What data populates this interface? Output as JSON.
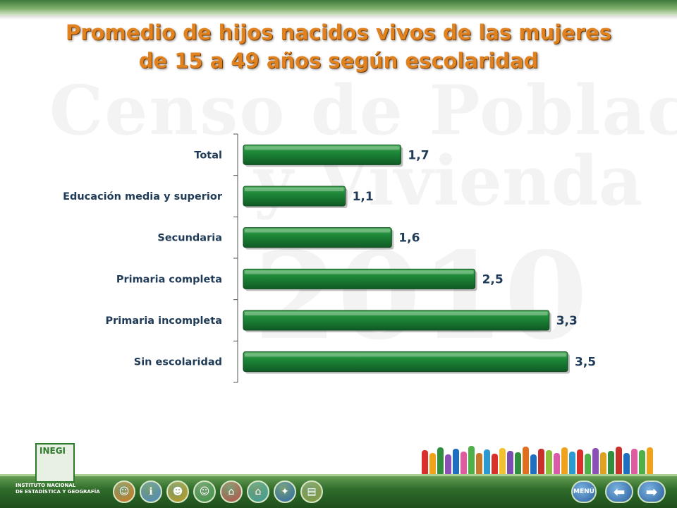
{
  "slide": {
    "title_line1": "Promedio de hijos nacidos vivos de las mujeres",
    "title_line2": "de 15 a 49 años según escolaridad",
    "watermark_line1": "Censo de Población",
    "watermark_line2": "y Vivienda",
    "watermark_line3": "2010"
  },
  "chart_data": {
    "type": "bar",
    "orientation": "horizontal",
    "title": "Promedio de hijos nacidos vivos de las mujeres de 15 a 49 años según escolaridad",
    "categories": [
      "Total",
      "Educación media y superior",
      "Secundaria",
      "Primaria completa",
      "Primaria incompleta",
      "Sin escolaridad"
    ],
    "values": [
      1.7,
      1.1,
      1.6,
      2.5,
      3.3,
      3.5
    ],
    "value_labels": [
      "1,7",
      "1,1",
      "1,6",
      "2,5",
      "3,3",
      "3,5"
    ],
    "xlim": [
      0,
      3.5
    ],
    "xlabel": "",
    "ylabel": "",
    "grid": false,
    "legend": "none",
    "bar_color": "#1f7a37"
  },
  "footer": {
    "logo_text": "INEGI",
    "institution_line1": "INSTITUTO NACIONAL",
    "institution_line2": "DE ESTADÍSTICA Y GEOGRAFÍA",
    "menu_label": "MENÚ",
    "back_glyph": "⬅",
    "forward_glyph": "➡",
    "icons": [
      {
        "name": "family-icon",
        "color": "#e07b1a",
        "glyph": "☺"
      },
      {
        "name": "info-icon",
        "color": "#4f8fcf",
        "glyph": "ℹ"
      },
      {
        "name": "people-icon",
        "color": "#c9a11c",
        "glyph": "☻"
      },
      {
        "name": "group-icon",
        "color": "#3f9a48",
        "glyph": "☺"
      },
      {
        "name": "house-icon",
        "color": "#c8524a",
        "glyph": "⌂"
      },
      {
        "name": "home-icon",
        "color": "#3aa6a0",
        "glyph": "⌂"
      },
      {
        "name": "map-icon",
        "color": "#2f6fb5",
        "glyph": "✦"
      },
      {
        "name": "document-icon",
        "color": "#8aa13a",
        "glyph": "▤"
      }
    ],
    "people_colors": [
      "#d9302c",
      "#f0a21a",
      "#2f8f3e",
      "#8c4fb5",
      "#1f6fc0",
      "#e05ca0",
      "#4fb04a",
      "#c8782a",
      "#2a9ad0",
      "#d9302c",
      "#f2c12e",
      "#7a4fb0",
      "#2f8f3e",
      "#e07020",
      "#1f6fc0",
      "#c8302c",
      "#8cc23a",
      "#d95aa8",
      "#f0a21a",
      "#2a9ad0",
      "#d9302c",
      "#4fb04a",
      "#8c4fb5",
      "#e0a020",
      "#2f8f3e",
      "#c8302c",
      "#1f6fc0",
      "#e05ca0",
      "#4fb04a",
      "#f0a21a"
    ]
  }
}
